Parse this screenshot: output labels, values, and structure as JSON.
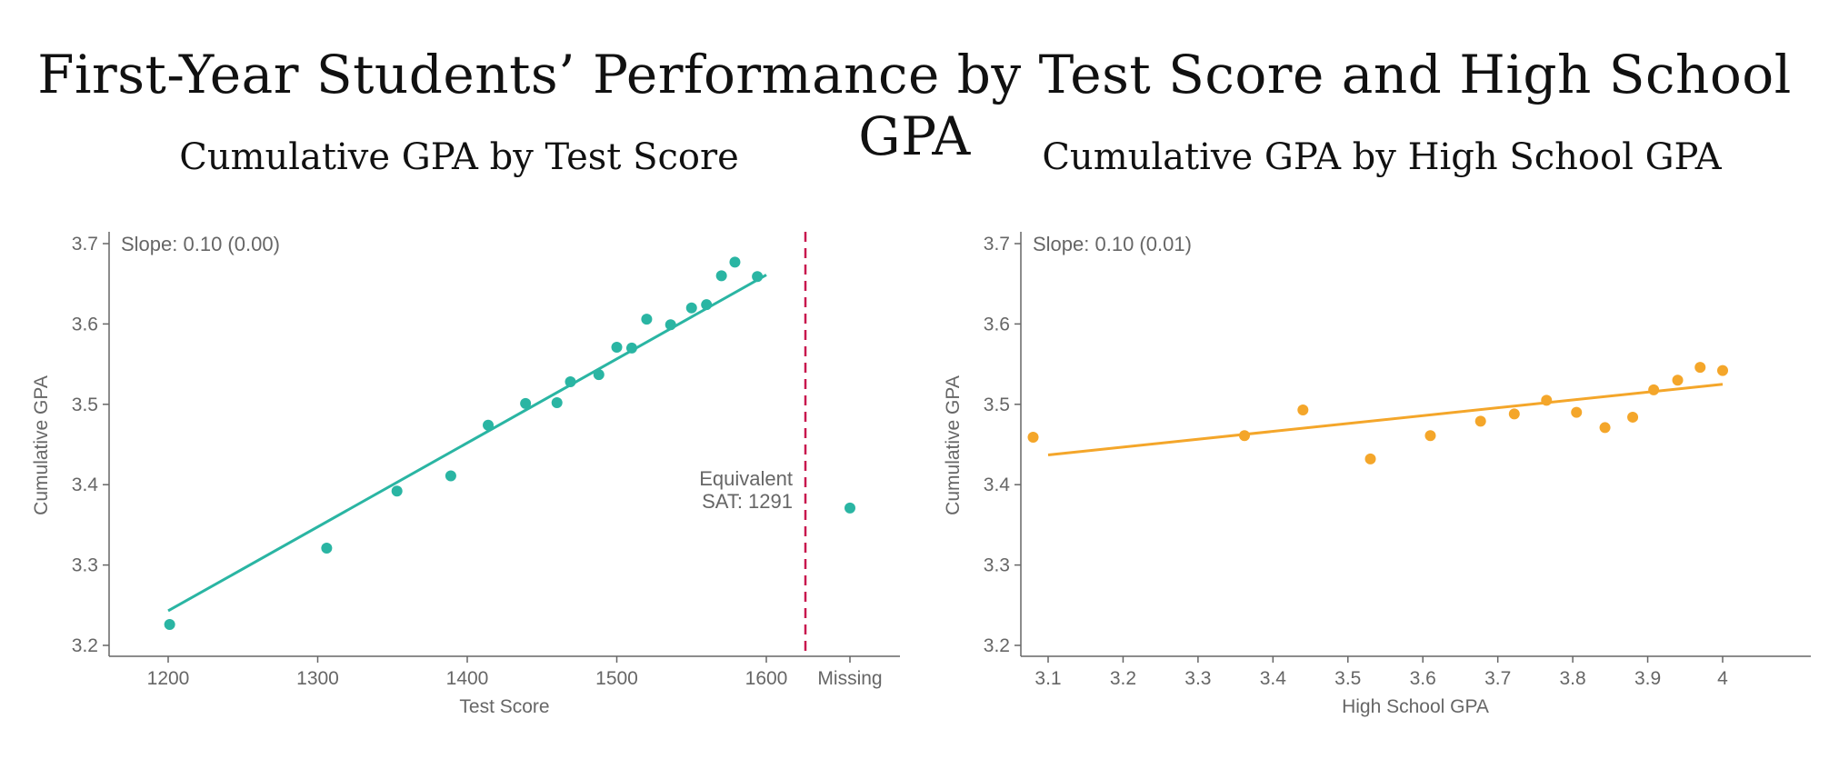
{
  "title": "First-Year Students’ Performance by Test Score and High School GPA",
  "colors": {
    "teal": "#2ab5a3",
    "orange": "#f4a62a",
    "axis": "#666666",
    "divider": "#c8174e"
  },
  "chart_data": [
    {
      "type": "scatter",
      "title": "Cumulative GPA by Test Score",
      "xlabel": "Test Score",
      "ylabel": "Cumulative GPA",
      "xlim": [
        1160,
        1690
      ],
      "ylim": [
        3.185,
        3.715
      ],
      "xticks": [
        1200,
        1300,
        1400,
        1500,
        1600
      ],
      "xtick_labels": [
        "1200",
        "1300",
        "1400",
        "1500",
        "1600"
      ],
      "extra_category": "Missing",
      "yticks": [
        3.2,
        3.3,
        3.4,
        3.5,
        3.6,
        3.7
      ],
      "ytick_labels": [
        "3.2",
        "3.3",
        "3.4",
        "3.5",
        "3.6",
        "3.7"
      ],
      "color": "#2ab5a3",
      "points": [
        {
          "x": 1201,
          "y": 3.226
        },
        {
          "x": 1306,
          "y": 3.321
        },
        {
          "x": 1353,
          "y": 3.392
        },
        {
          "x": 1389,
          "y": 3.411
        },
        {
          "x": 1414,
          "y": 3.474
        },
        {
          "x": 1439,
          "y": 3.501
        },
        {
          "x": 1460,
          "y": 3.502
        },
        {
          "x": 1469,
          "y": 3.528
        },
        {
          "x": 1488,
          "y": 3.537
        },
        {
          "x": 1500,
          "y": 3.571
        },
        {
          "x": 1510,
          "y": 3.57
        },
        {
          "x": 1520,
          "y": 3.606
        },
        {
          "x": 1536,
          "y": 3.599
        },
        {
          "x": 1550,
          "y": 3.62
        },
        {
          "x": 1560,
          "y": 3.624
        },
        {
          "x": 1570,
          "y": 3.66
        },
        {
          "x": 1579,
          "y": 3.677
        },
        {
          "x": 1594,
          "y": 3.659
        }
      ],
      "missing_point": {
        "x": "Missing",
        "y": 3.371
      },
      "fit_line": {
        "x": [
          1200,
          1600
        ],
        "y": [
          3.243,
          3.661
        ]
      },
      "slope_label": "Slope: 0.10 (0.00)",
      "annotation": [
        "Equivalent",
        "SAT: 1291"
      ]
    },
    {
      "type": "scatter",
      "title": "Cumulative GPA by High School GPA",
      "xlabel": "High School GPA",
      "ylabel": "Cumulative GPA",
      "xlim": [
        3.075,
        4.115
      ],
      "ylim": [
        3.185,
        3.715
      ],
      "xticks": [
        3.1,
        3.2,
        3.3,
        3.4,
        3.5,
        3.6,
        3.7,
        3.8,
        3.9,
        4.0
      ],
      "xtick_labels": [
        "3.1",
        "3.2",
        "3.3",
        "3.4",
        "3.5",
        "3.6",
        "3.7",
        "3.8",
        "3.9",
        "4"
      ],
      "yticks": [
        3.2,
        3.3,
        3.4,
        3.5,
        3.6,
        3.7
      ],
      "ytick_labels": [
        "3.2",
        "3.3",
        "3.4",
        "3.5",
        "3.6",
        "3.7"
      ],
      "color": "#f4a62a",
      "points": [
        {
          "x": 3.08,
          "y": 3.459
        },
        {
          "x": 3.362,
          "y": 3.461
        },
        {
          "x": 3.44,
          "y": 3.493
        },
        {
          "x": 3.53,
          "y": 3.432
        },
        {
          "x": 3.61,
          "y": 3.461
        },
        {
          "x": 3.677,
          "y": 3.479
        },
        {
          "x": 3.722,
          "y": 3.488
        },
        {
          "x": 3.765,
          "y": 3.505
        },
        {
          "x": 3.805,
          "y": 3.49
        },
        {
          "x": 3.843,
          "y": 3.471
        },
        {
          "x": 3.88,
          "y": 3.484
        },
        {
          "x": 3.908,
          "y": 3.518
        },
        {
          "x": 3.94,
          "y": 3.53
        },
        {
          "x": 3.97,
          "y": 3.546
        },
        {
          "x": 4.0,
          "y": 3.542
        }
      ],
      "fit_line": {
        "x": [
          3.1,
          4.0
        ],
        "y": [
          3.437,
          3.525
        ]
      },
      "slope_label": "Slope: 0.10 (0.01)"
    }
  ]
}
